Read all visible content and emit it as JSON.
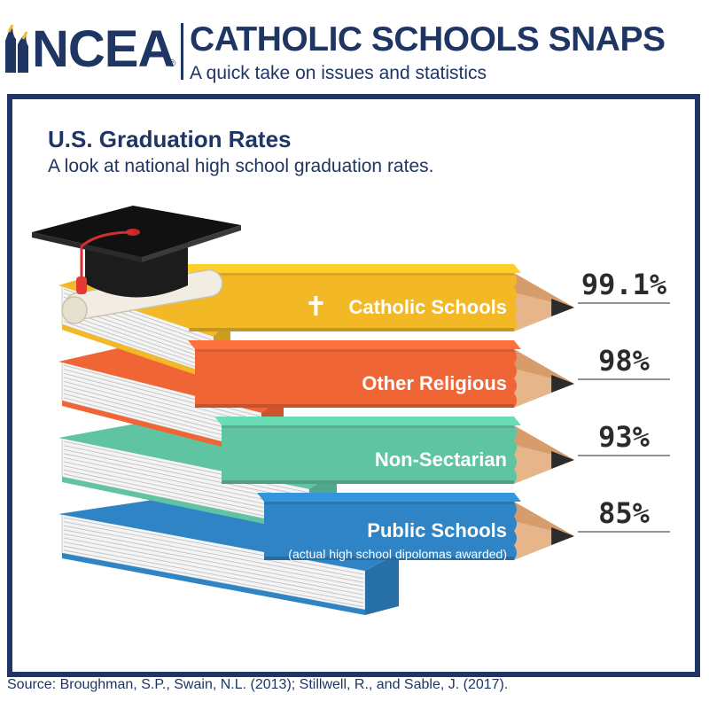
{
  "header": {
    "logo_text": "NCEA",
    "registered": "®",
    "title": "CATHOLIC SCHOOLS SNAPS",
    "subtitle": "A quick take on issues and statistics"
  },
  "chart_data": {
    "type": "bar",
    "title": "U.S. Graduation Rates",
    "subtitle": "A look at national high school graduation rates.",
    "categories": [
      "Catholic Schools",
      "Other Religious",
      "Non-Sectarian",
      "Public Schools"
    ],
    "values": [
      99.1,
      98,
      93,
      85
    ],
    "value_labels": [
      "99.1%",
      "98%",
      "93%",
      "85%"
    ],
    "category_notes": [
      "",
      "",
      "",
      "(actual high school dipolomas awarded)"
    ],
    "category_icons": [
      "cross-icon",
      "",
      "",
      ""
    ],
    "colors": [
      "#f2b825",
      "#ef6536",
      "#5fc4a2",
      "#2e84c4"
    ],
    "orientation": "horizontal",
    "decoration": "books-and-pencils"
  },
  "source": "Source:  Broughman, S.P., Swain, N.L. (2013); Stillwell, R., and Sable, J. (2017).",
  "colors": {
    "navy": "#1f3563"
  }
}
